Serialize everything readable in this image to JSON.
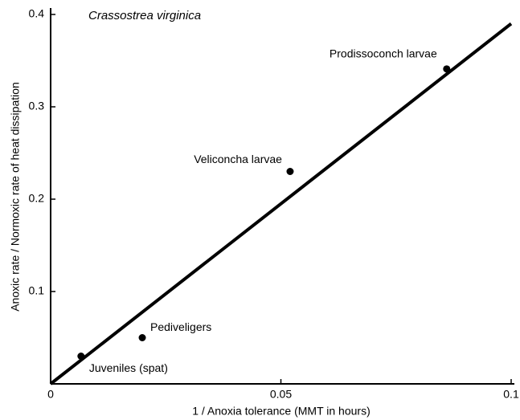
{
  "chart_data": {
    "type": "scatter",
    "title": "Crassostrea virginica",
    "xlabel": "1 / Anoxia tolerance (MMT in hours)",
    "ylabel": "Anoxic rate / Normoxic rate of heat dissipation",
    "x": [
      0.0066,
      0.0199,
      0.052,
      0.086
    ],
    "values": [
      0.03,
      0.05,
      0.23,
      0.341
    ],
    "labels": [
      "Juveniles (spat)",
      "Pediveligers",
      "Veliconcha larvae",
      "Prodissoconch larvae"
    ],
    "color": "#000000",
    "fit_line": {
      "x": [
        0,
        0.1
      ],
      "y": [
        0,
        0.39
      ]
    },
    "xlim": [
      0,
      0.1
    ],
    "ylim": [
      0,
      0.4
    ],
    "xticks": [
      0,
      0.05,
      0.1
    ],
    "yticks": [
      0.1,
      0.2,
      0.3,
      0.4
    ],
    "grid": false
  }
}
